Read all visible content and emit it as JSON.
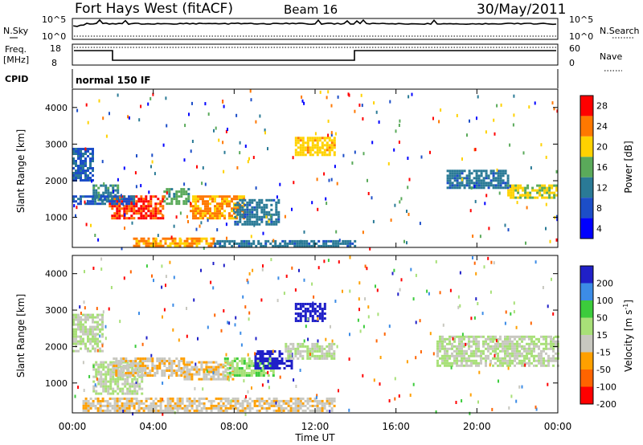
{
  "header": {
    "title": "Fort Hays West (fitACF)",
    "beam": "Beam 16",
    "date": "30/May/2011"
  },
  "status_panels": {
    "nsky_label": "N.Sky",
    "nsearch_label": "N.Search",
    "nsky_ticks": [
      "10^5",
      "10^0"
    ],
    "freq_label": "Freq.",
    "freq_unit": "[MHz]",
    "freq_ticks": [
      "18",
      "8"
    ],
    "nave_label": "Nave",
    "nave_ticks": [
      "60",
      "0"
    ],
    "cpid_label": "CPID",
    "cpid_value": "normal 150 IF"
  },
  "power_colorbar": {
    "label": "Power [dB]",
    "ticks": [
      "28",
      "24",
      "20",
      "16",
      "12",
      "8",
      "4"
    ],
    "colors": [
      "#ff0000",
      "#ff7800",
      "#ffd200",
      "#5aaa5a",
      "#2a7a96",
      "#1c4ec8",
      "#0000ff"
    ]
  },
  "velocity_colorbar": {
    "label": "Velocity [m s",
    "label_sup": "-1",
    "label_end": "]",
    "ticks": [
      "200",
      "100",
      "50",
      "15",
      "-15",
      "-50",
      "-100",
      "-200"
    ],
    "colors": [
      "#2020c8",
      "#3c8ce6",
      "#3ccc3c",
      "#a8e078",
      "#c8c8c0",
      "#ffa000",
      "#ff6400",
      "#ff0000"
    ]
  },
  "axes": {
    "ylabel": "Slant Range [km]",
    "xlabel": "Time UT",
    "y_ticks": [
      "4000",
      "3000",
      "2000",
      "1000"
    ],
    "x_ticks": [
      "00:00",
      "04:00",
      "08:00",
      "12:00",
      "16:00",
      "20:00",
      "00:00"
    ]
  },
  "chart_data": [
    {
      "type": "heatmap",
      "quantity": "Power",
      "unit": "dB",
      "xlabel": "Time UT",
      "ylabel": "Slant Range [km]",
      "xlim": [
        0,
        24
      ],
      "ylim": [
        180,
        4500
      ],
      "colorscale": [
        0,
        30
      ],
      "regions": [
        {
          "t0": 0.0,
          "t1": 1.0,
          "r0": 2000,
          "r1": 2900,
          "v": 8
        },
        {
          "t0": 1.0,
          "t1": 2.2,
          "r0": 1500,
          "r1": 1900,
          "v": 12
        },
        {
          "t0": 1.8,
          "t1": 4.5,
          "r0": 1000,
          "r1": 1600,
          "v": 26
        },
        {
          "t0": 4.5,
          "t1": 5.8,
          "r0": 1400,
          "r1": 1800,
          "v": 14
        },
        {
          "t0": 5.8,
          "t1": 8.5,
          "r0": 1000,
          "r1": 1600,
          "v": 22
        },
        {
          "t0": 8.0,
          "t1": 10.2,
          "r0": 800,
          "r1": 1500,
          "v": 10
        },
        {
          "t0": 0.0,
          "t1": 3.0,
          "r0": 1400,
          "r1": 1600,
          "v": 8
        },
        {
          "t0": 3.0,
          "t1": 7.0,
          "r0": 250,
          "r1": 450,
          "v": 22
        },
        {
          "t0": 7.0,
          "t1": 14.0,
          "r0": 220,
          "r1": 380,
          "v": 10
        },
        {
          "t0": 11.0,
          "t1": 13.0,
          "r0": 2700,
          "r1": 3200,
          "v": 20
        },
        {
          "t0": 18.5,
          "t1": 21.5,
          "r0": 1800,
          "r1": 2300,
          "v": 10
        },
        {
          "t0": 21.5,
          "t1": 24.0,
          "r0": 1550,
          "r1": 1900,
          "v": 18
        }
      ]
    },
    {
      "type": "heatmap",
      "quantity": "Velocity",
      "unit": "m s^-1",
      "xlabel": "Time UT",
      "ylabel": "Slant Range [km]",
      "xlim": [
        0,
        24
      ],
      "ylim": [
        180,
        4500
      ],
      "colorscale": [
        -200,
        200
      ],
      "regions": [
        {
          "t0": 0.0,
          "t1": 1.5,
          "r0": 1900,
          "r1": 2900,
          "v": 0
        },
        {
          "t0": 1.0,
          "t1": 3.5,
          "r0": 700,
          "r1": 1600,
          "v": 0
        },
        {
          "t0": 2.0,
          "t1": 5.5,
          "r0": 1200,
          "r1": 1700,
          "v": -40
        },
        {
          "t0": 5.5,
          "t1": 8.0,
          "r0": 1100,
          "r1": 1600,
          "v": -40
        },
        {
          "t0": 7.5,
          "t1": 10.0,
          "r0": 1200,
          "r1": 1700,
          "v": 40
        },
        {
          "t0": 9.0,
          "t1": 10.8,
          "r0": 1400,
          "r1": 1900,
          "v": 200
        },
        {
          "t0": 0.5,
          "t1": 13.0,
          "r0": 250,
          "r1": 600,
          "v": -40
        },
        {
          "t0": 10.5,
          "t1": 13.0,
          "r0": 1700,
          "r1": 2100,
          "v": 0
        },
        {
          "t0": 18.0,
          "t1": 24.0,
          "r0": 1500,
          "r1": 2300,
          "v": 0
        },
        {
          "t0": 11.0,
          "t1": 12.5,
          "r0": 2700,
          "r1": 3200,
          "v": 200
        }
      ]
    }
  ]
}
